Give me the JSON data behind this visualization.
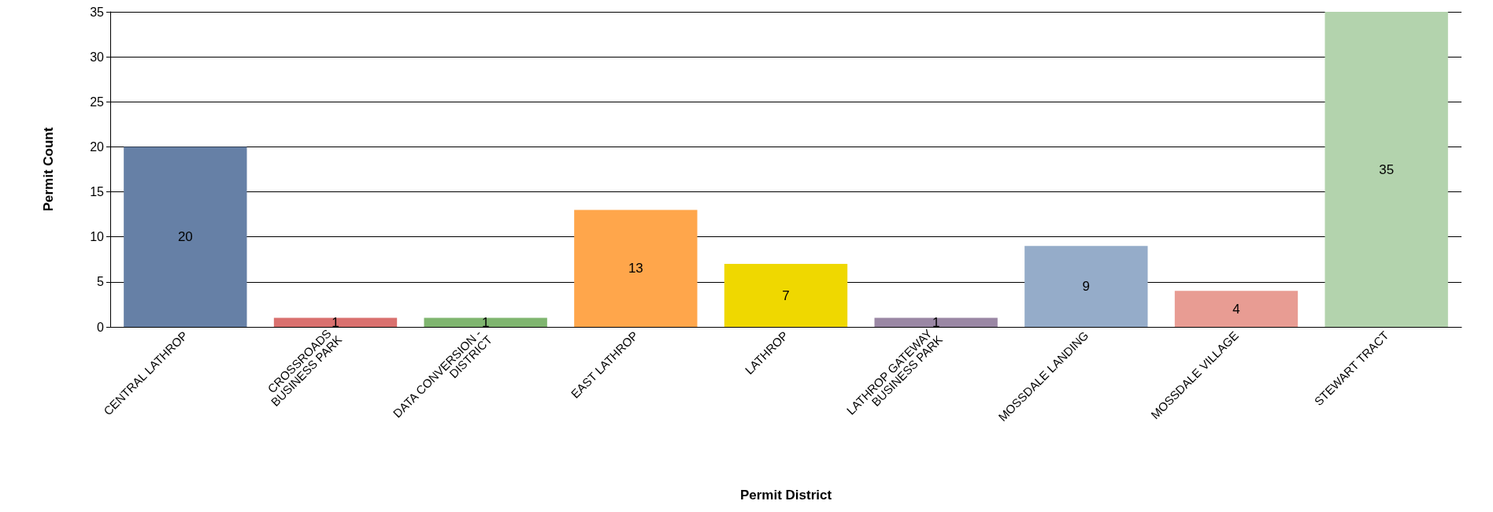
{
  "chart_data": {
    "type": "bar",
    "xlabel": "Permit District",
    "ylabel": "Permit Count",
    "categories": [
      "CENTRAL LATHROP",
      "CROSSROADS BUSINESS PARK",
      "DATA CONVERSION - DISTRICT",
      "EAST LATHROP",
      "LATHROP",
      "LATHROP GATEWAY BUSINESS PARK",
      "MOSSDALE LANDING",
      "MOSSDALE VILLAGE",
      "STEWART TRACT"
    ],
    "values": [
      20,
      1,
      1,
      13,
      7,
      1,
      9,
      4,
      35
    ],
    "colors": [
      "#6680a6",
      "#d9706e",
      "#7fb56f",
      "#ffa64b",
      "#efd800",
      "#9a87a4",
      "#95acc9",
      "#e89c93",
      "#b3d3ad"
    ],
    "ylim": [
      0,
      35
    ],
    "yticks": [
      0,
      5,
      10,
      15,
      20,
      25,
      30,
      35
    ],
    "grid": "y",
    "data_labels": true
  }
}
